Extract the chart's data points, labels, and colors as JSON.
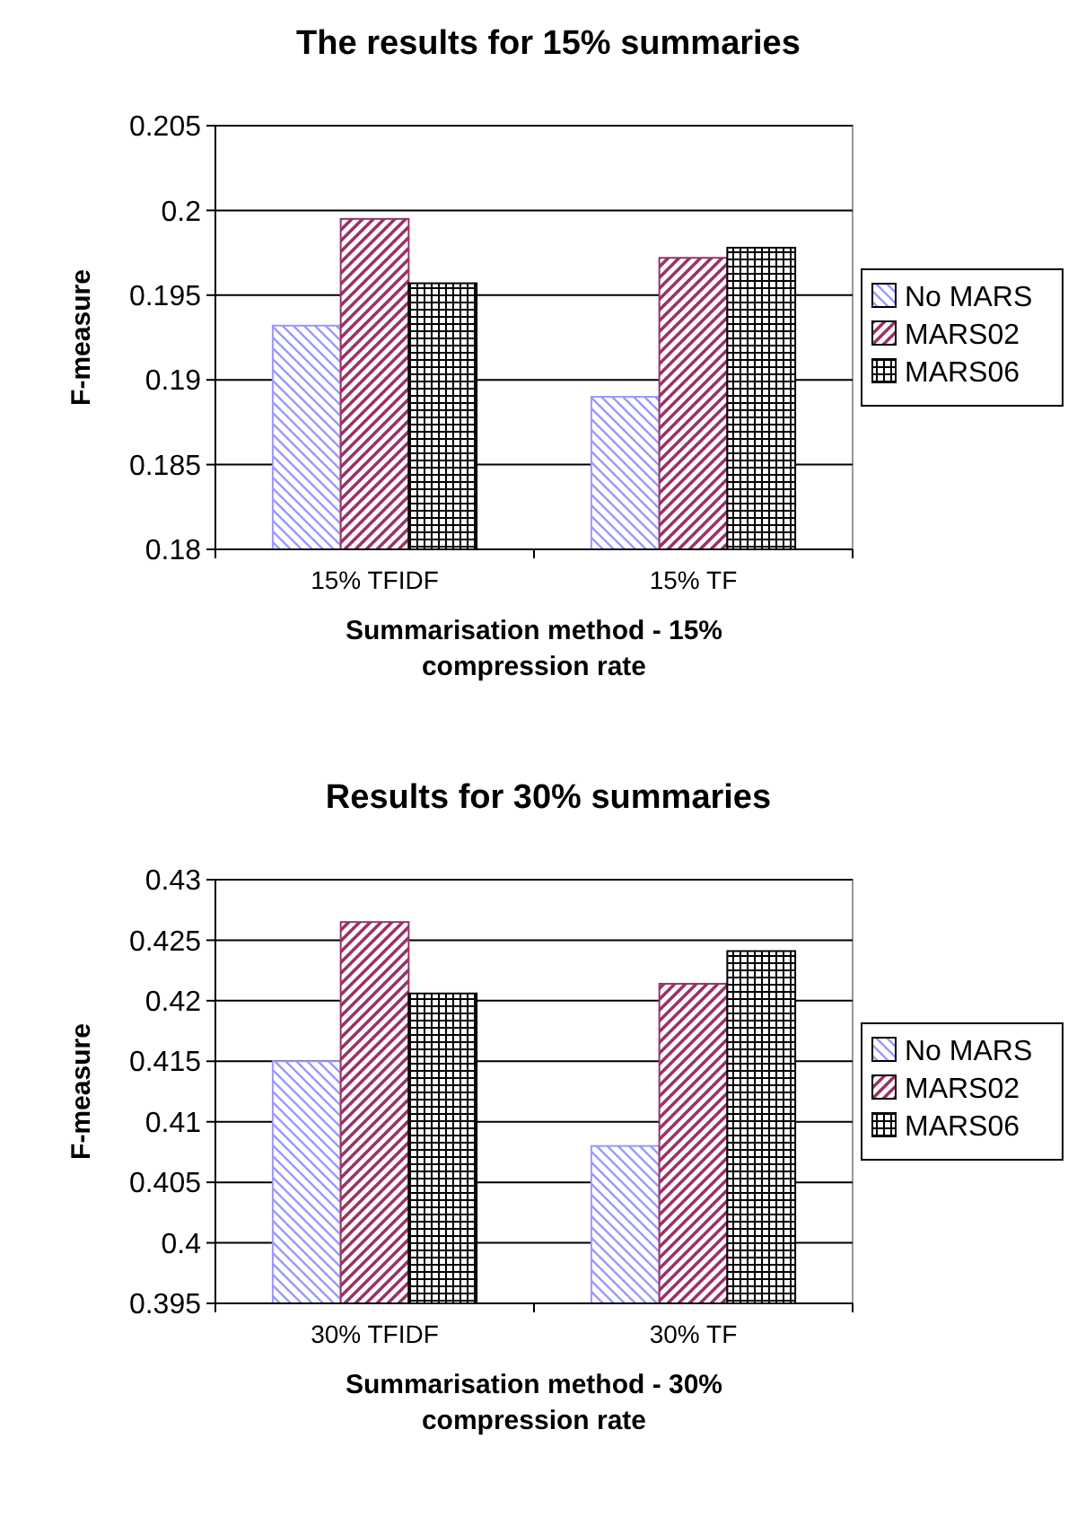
{
  "chart_data": [
    {
      "type": "bar",
      "title": "The results for 15% summaries",
      "xlabel": "Summarisation method - 15% compression rate",
      "ylabel": "F-measure",
      "categories": [
        "15% TFIDF",
        "15% TF"
      ],
      "series": [
        {
          "name": "No MARS",
          "color": "#9999ff",
          "values": [
            0.1932,
            0.189
          ]
        },
        {
          "name": "MARS02",
          "color": "#993366",
          "values": [
            0.1995,
            0.1972
          ]
        },
        {
          "name": "MARS06",
          "color": "#000000",
          "values": [
            0.1957,
            0.1978
          ]
        }
      ],
      "ylim": [
        0.18,
        0.205
      ],
      "yticks": [
        0.18,
        0.185,
        0.19,
        0.195,
        0.2,
        0.205
      ],
      "grid": "y",
      "legend": "right"
    },
    {
      "type": "bar",
      "title": "Results for 30% summaries",
      "xlabel": "Summarisation method - 30% compression rate",
      "ylabel": "F-measure",
      "categories": [
        "30% TFIDF",
        "30% TF"
      ],
      "series": [
        {
          "name": "No MARS",
          "color": "#9999ff",
          "values": [
            0.415,
            0.408
          ]
        },
        {
          "name": "MARS02",
          "color": "#993366",
          "values": [
            0.4265,
            0.4214
          ]
        },
        {
          "name": "MARS06",
          "color": "#000000",
          "values": [
            0.4206,
            0.4241
          ]
        }
      ],
      "ylim": [
        0.395,
        0.43
      ],
      "yticks": [
        0.395,
        0.4,
        0.405,
        0.41,
        0.415,
        0.42,
        0.425,
        0.43
      ],
      "grid": "y",
      "legend": "right"
    }
  ]
}
